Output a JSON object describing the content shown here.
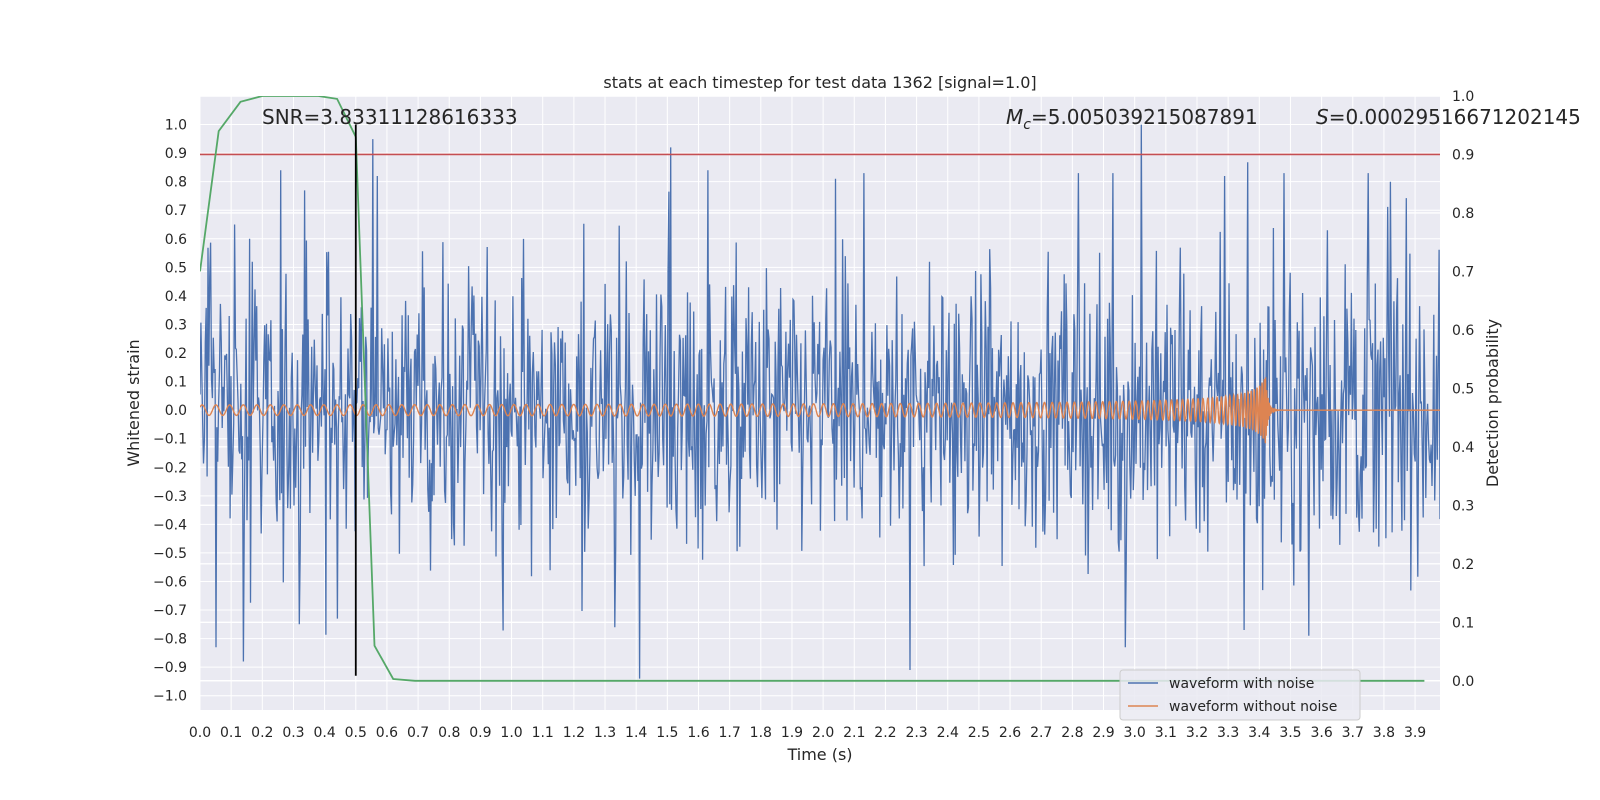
{
  "chart_data": {
    "type": "line",
    "title": "stats at each timestep for test data 1362 [signal=1.0]",
    "xlabel": "Time (s)",
    "ylabel": "Whitened strain",
    "y2label": "Detection probability",
    "xlim": [
      0.0,
      3.98
    ],
    "ylim": [
      -1.05,
      1.1
    ],
    "y2lim": [
      -0.05,
      1.0
    ],
    "xticks": [
      "0.0",
      "0.1",
      "0.2",
      "0.3",
      "0.4",
      "0.5",
      "0.6",
      "0.7",
      "0.8",
      "0.9",
      "1.0",
      "1.1",
      "1.2",
      "1.3",
      "1.4",
      "1.5",
      "1.6",
      "1.7",
      "1.8",
      "1.9",
      "2.0",
      "2.1",
      "2.2",
      "2.3",
      "2.4",
      "2.5",
      "2.6",
      "2.7",
      "2.8",
      "2.9",
      "3.0",
      "3.1",
      "3.2",
      "3.3",
      "3.4",
      "3.5",
      "3.6",
      "3.7",
      "3.8",
      "3.9"
    ],
    "yticks": [
      "1.0",
      "0.9",
      "0.8",
      "0.7",
      "0.6",
      "0.5",
      "0.4",
      "0.3",
      "0.2",
      "0.1",
      "0.0",
      "−0.1",
      "−0.2",
      "−0.3",
      "−0.4",
      "−0.5",
      "−0.6",
      "−0.7",
      "−0.8",
      "−0.9",
      "−1.0"
    ],
    "y2ticks": [
      "1.0",
      "0.9",
      "0.8",
      "0.7",
      "0.6",
      "0.5",
      "0.4",
      "0.3",
      "0.2",
      "0.1",
      "0.0"
    ],
    "annotations": {
      "snr": "SNR=3.83311128616333",
      "mc": "=5.005039215087891",
      "mc_symbol": "M",
      "mc_sub": "c",
      "s": "=0.00029516671202145",
      "s_symbol": "S"
    },
    "legend": {
      "position": "lower-right",
      "entries": [
        "waveform with noise",
        "waveform without noise"
      ]
    },
    "threshold_line": {
      "axis": "y2",
      "value": 0.9,
      "color": "#c44e52"
    },
    "marker_line": {
      "x": 0.5,
      "y_from": -0.93,
      "y_to": 1.0,
      "color": "#000000"
    },
    "series": [
      {
        "name": "detection probability",
        "axis": "y2",
        "color": "#55a868",
        "x": [
          0.0,
          0.06,
          0.13,
          0.2,
          0.3,
          0.38,
          0.44,
          0.5,
          0.56,
          0.62,
          0.69,
          0.75,
          1.0,
          1.5,
          2.0,
          2.5,
          3.0,
          3.5,
          3.93
        ],
        "values": [
          0.7,
          0.94,
          0.99,
          1.0,
          1.0,
          1.0,
          0.995,
          0.93,
          0.06,
          0.003,
          0.0,
          0.0,
          0.0,
          0.0,
          0.0,
          0.0,
          0.0,
          0.0,
          0.0
        ]
      },
      {
        "name": "waveform with noise",
        "axis": "y",
        "color": "#4c72b0",
        "x_range": [
          0.0,
          3.98
        ],
        "samples": 1400,
        "peaks": [
          [
            0.26,
            0.84
          ],
          [
            0.57,
            0.82
          ],
          [
            0.11,
            0.65
          ],
          [
            0.16,
            0.6
          ],
          [
            1.51,
            0.92
          ],
          [
            1.63,
            0.84
          ],
          [
            2.04,
            0.81
          ],
          [
            2.13,
            0.83
          ],
          [
            2.82,
            0.83
          ],
          [
            2.93,
            0.83
          ],
          [
            3.02,
            1.0
          ],
          [
            3.29,
            0.82
          ],
          [
            3.48,
            0.83
          ],
          [
            3.75,
            0.83
          ],
          [
            3.82,
            0.8
          ],
          [
            0.14,
            -0.88
          ],
          [
            0.32,
            -0.75
          ],
          [
            1.41,
            -0.94
          ],
          [
            2.28,
            -0.91
          ],
          [
            2.97,
            -0.83
          ],
          [
            3.56,
            -0.79
          ],
          [
            3.35,
            -0.77
          ],
          [
            1.33,
            -0.76
          ],
          [
            0.05,
            -0.83
          ],
          [
            0.44,
            -0.73
          ]
        ]
      },
      {
        "name": "waveform without noise",
        "axis": "y",
        "color": "#dd8452",
        "x_range": [
          0.0,
          3.98
        ],
        "merger": 3.42,
        "amplitude_start": 0.012,
        "amplitude_end": 0.12
      }
    ]
  }
}
